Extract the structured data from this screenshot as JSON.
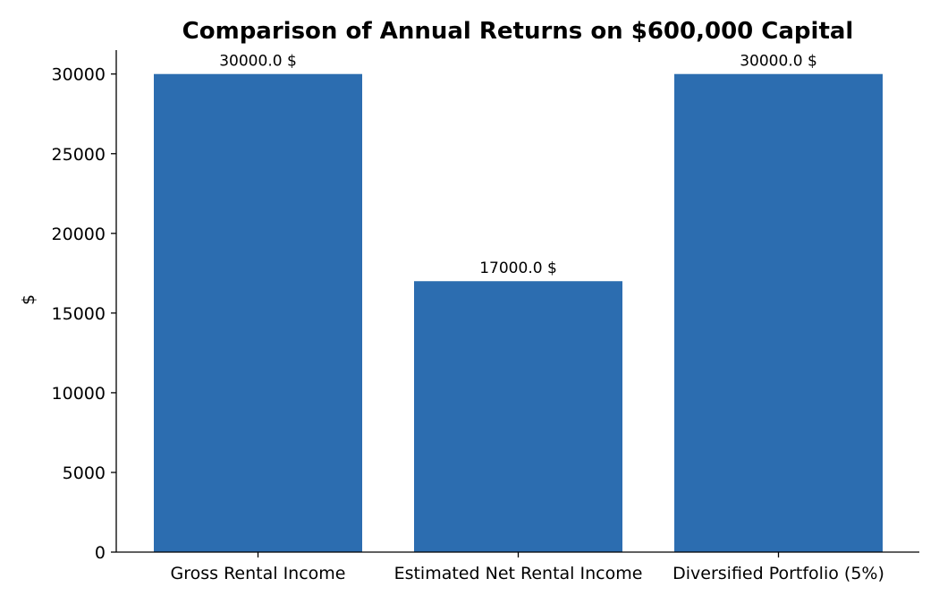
{
  "chart_data": {
    "type": "bar",
    "title": "Comparison of Annual Returns on $600,000 Capital",
    "xlabel": "",
    "ylabel": "$",
    "categories": [
      "Gross Rental Income",
      "Estimated Net Rental Income",
      "Diversified Portfolio (5%)"
    ],
    "values": [
      30000,
      17000,
      30000
    ],
    "data_labels": [
      "30000.0 $",
      "17000.0 $",
      "30000.0 $"
    ],
    "ylim": [
      0,
      31500
    ],
    "yticks": [
      0,
      5000,
      10000,
      15000,
      20000,
      25000,
      30000
    ],
    "ytick_labels": [
      "0",
      "5000",
      "10000",
      "15000",
      "20000",
      "25000",
      "30000"
    ],
    "grid": false,
    "legend": "none",
    "bar_color": "#2c6db0",
    "axis_color": "#000000"
  }
}
